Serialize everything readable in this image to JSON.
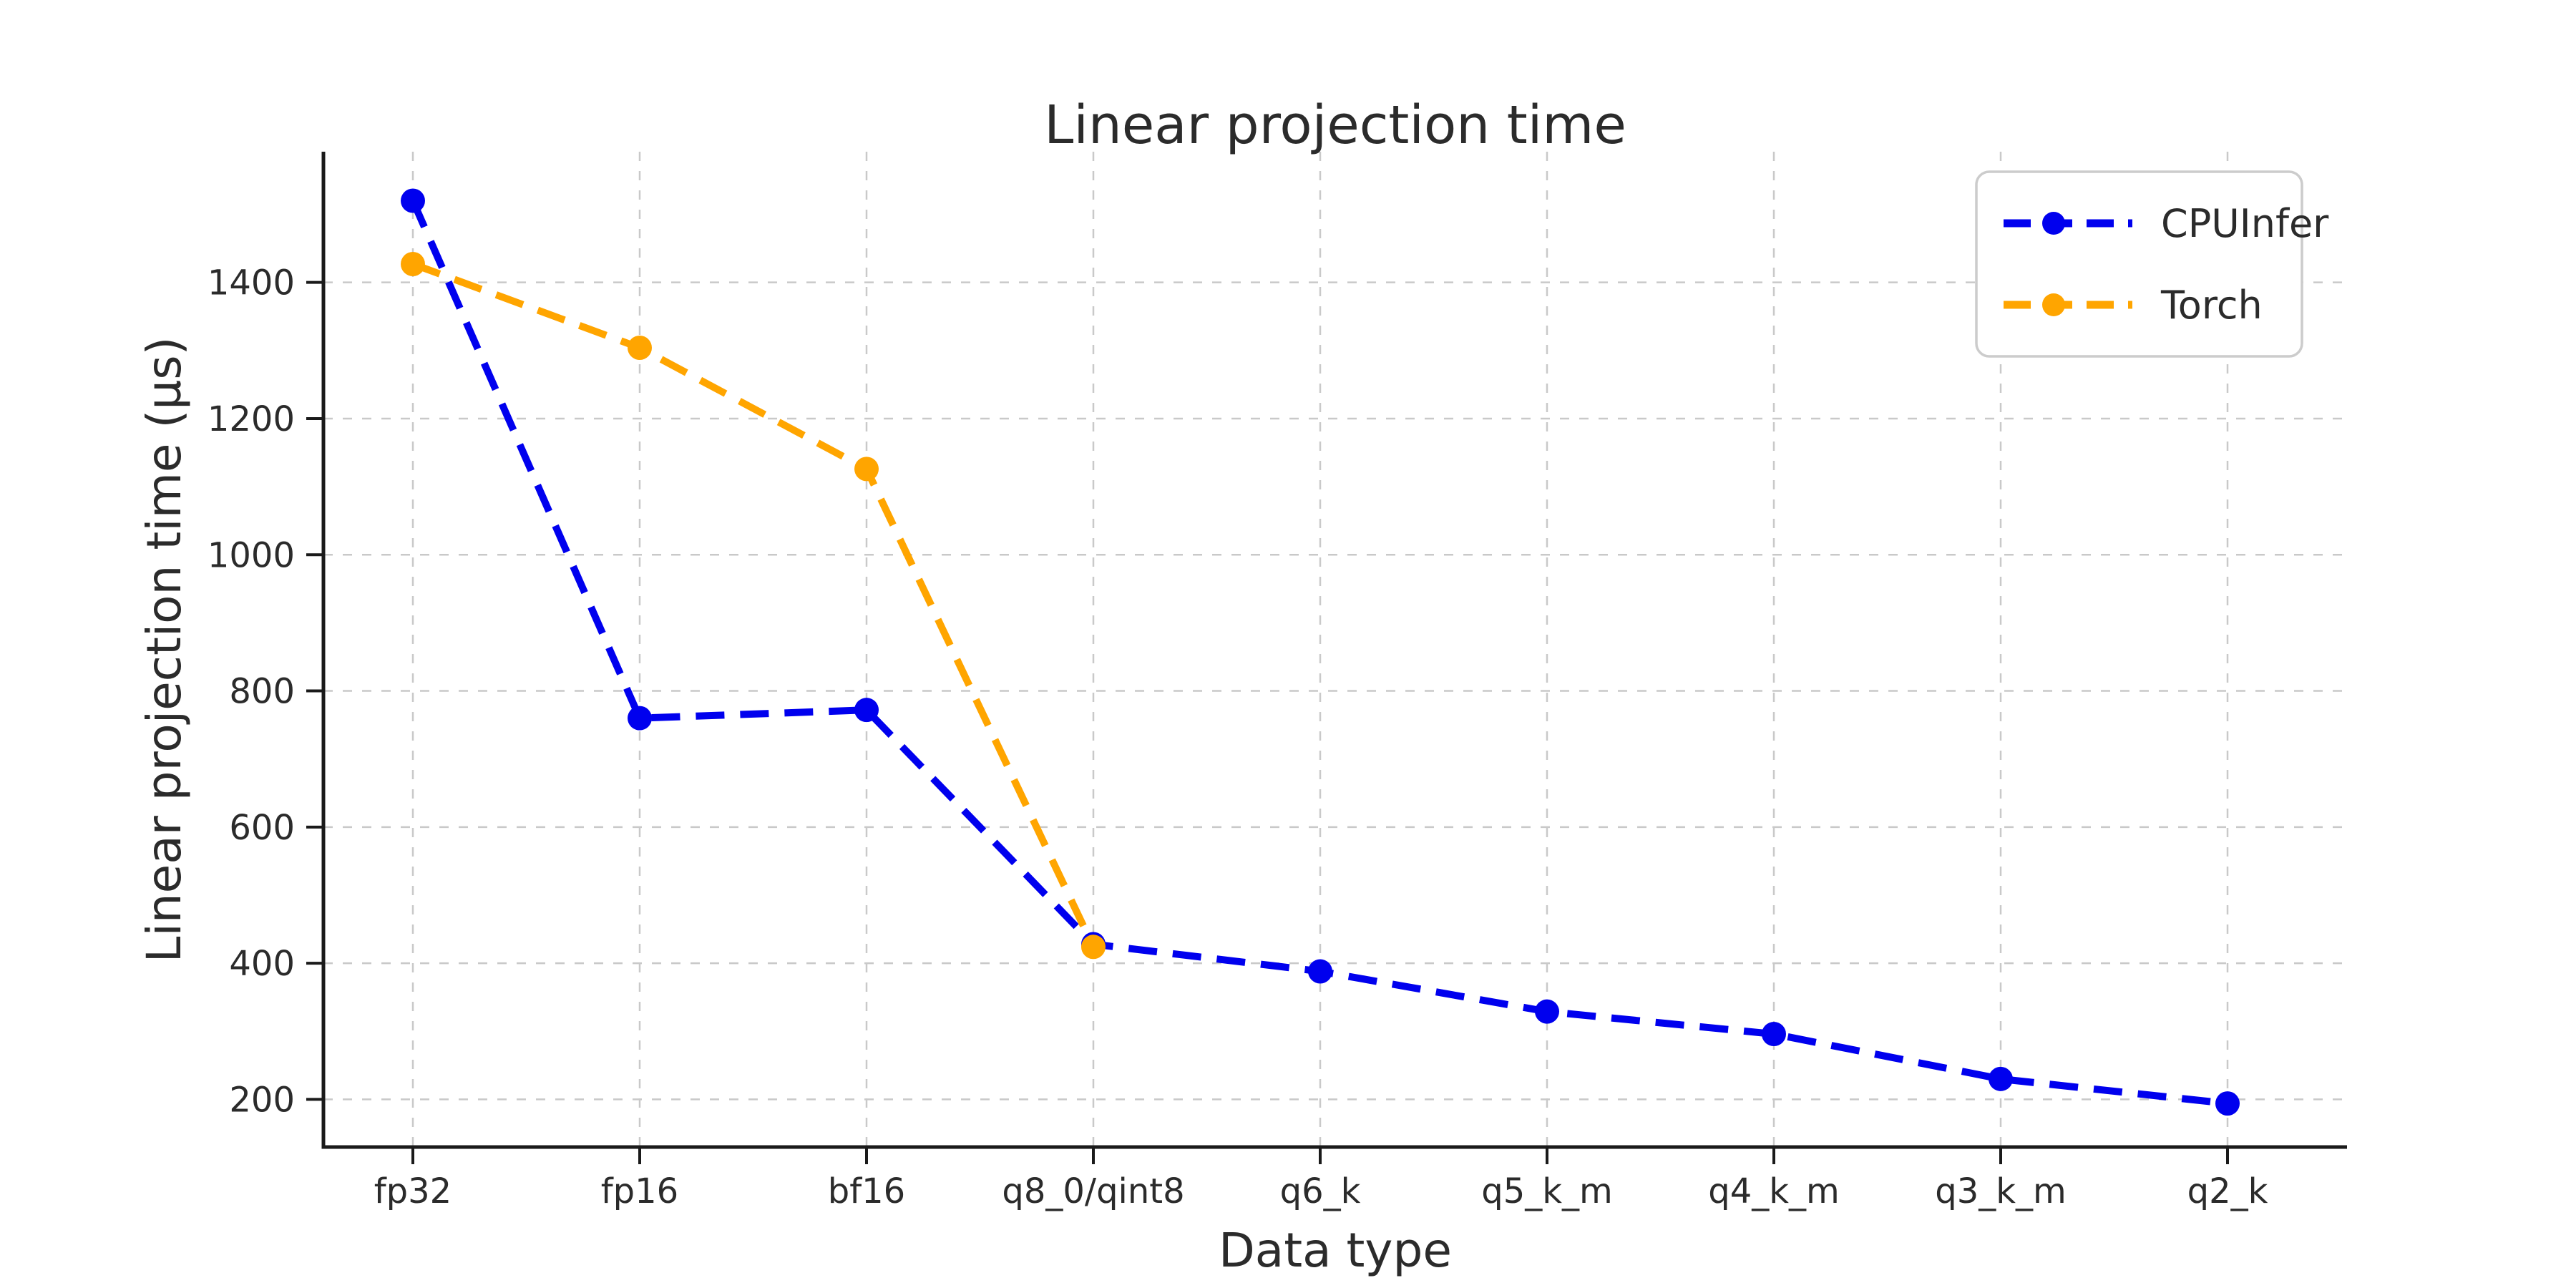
{
  "chart_data": {
    "type": "line",
    "title": "Linear projection time",
    "xlabel": "Data type",
    "ylabel": "Linear projection time (µs)",
    "categories": [
      "fp32",
      "fp16",
      "bf16",
      "q8_0/qint8",
      "q6_k",
      "q5_k_m",
      "q4_k_m",
      "q3_k_m",
      "q2_k"
    ],
    "series": [
      {
        "name": "CPUInfer",
        "color": "#0000ee",
        "values": [
          1520,
          760,
          772,
          428,
          388,
          329,
          296,
          230,
          194
        ]
      },
      {
        "name": "Torch",
        "color": "#ffa500",
        "values": [
          1427,
          1304,
          1126,
          424,
          null,
          null,
          null,
          null,
          null
        ]
      }
    ],
    "yticks": [
      200,
      400,
      600,
      800,
      1000,
      1200,
      1400
    ],
    "ylim": [
      130,
      1592
    ],
    "grid": true,
    "grid_style": "dashed",
    "line_style": "dashed",
    "marker": "circle",
    "legend_position": "upper right",
    "colors": {
      "axis": "#1a1a1a",
      "grid": "#c9c9c9",
      "text": "#2b2b2b",
      "legend_border": "#cccccc",
      "background": "#ffffff"
    }
  }
}
